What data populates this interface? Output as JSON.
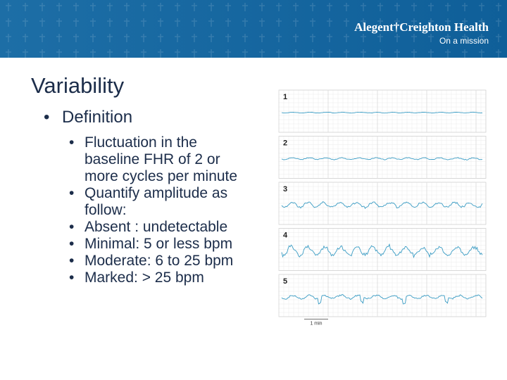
{
  "header": {
    "brand": "Alegent†Creighton Health",
    "tagline": "On a mission"
  },
  "title": "Variability",
  "bullets": [
    {
      "text": "Definition",
      "items": [
        "Fluctuation in the baseline FHR of 2 or more cycles per minute",
        "Quantify amplitude as follow:",
        "Absent : undetectable",
        "Minimal: 5 or less bpm",
        "Moderate: 6 to 25 bpm",
        "Marked: > 25 bpm"
      ]
    }
  ],
  "figure": {
    "strips": [
      "1",
      "2",
      "3",
      "4",
      "5"
    ],
    "scale": "1 min"
  }
}
